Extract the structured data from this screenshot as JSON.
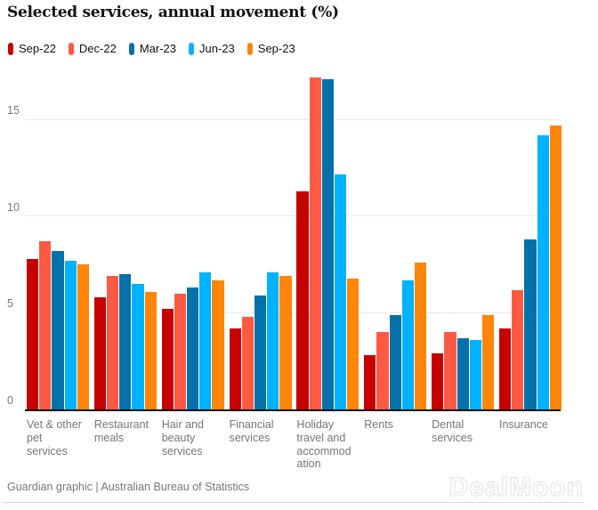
{
  "title": "Selected services, annual movement (%)",
  "footer": {
    "source": "Guardian graphic | Australian Bureau of Statistics"
  },
  "watermark": "DealMoon",
  "colors": {
    "axis_line": "#121212",
    "gridline": "#e8e8e8",
    "muted_text": "#767676",
    "title_text": "#121212"
  },
  "chart_data": {
    "type": "bar",
    "title": "Selected services, annual movement (%)",
    "xlabel": "",
    "ylabel": "",
    "ylim": [
      0,
      17.25
    ],
    "yticks": [
      0,
      5,
      10,
      15
    ],
    "grid": true,
    "legend_position": "top-left",
    "categories": [
      "Vet & other pet services",
      "Restaurant meals",
      "Hair and beauty services",
      "Financial services",
      "Holiday travel and accommodation",
      "Rents",
      "Dental services",
      "Insurance"
    ],
    "series": [
      {
        "name": "Sep-22",
        "color": "#c70000",
        "values": [
          7.8,
          5.8,
          5.2,
          4.2,
          11.3,
          2.8,
          2.9,
          4.2
        ]
      },
      {
        "name": "Dec-22",
        "color": "#ff5943",
        "values": [
          8.7,
          6.9,
          6.0,
          4.8,
          17.2,
          4.0,
          4.0,
          6.2
        ]
      },
      {
        "name": "Mar-23",
        "color": "#0671a8",
        "values": [
          8.2,
          7.0,
          6.3,
          5.9,
          17.1,
          4.9,
          3.7,
          8.8
        ]
      },
      {
        "name": "Jun-23",
        "color": "#00b2ff",
        "values": [
          7.7,
          6.5,
          7.1,
          7.1,
          12.2,
          6.7,
          3.6,
          14.2
        ]
      },
      {
        "name": "Sep-23",
        "color": "#ff850b",
        "values": [
          7.5,
          6.1,
          6.7,
          6.9,
          6.8,
          7.6,
          4.9,
          14.7
        ]
      }
    ]
  }
}
